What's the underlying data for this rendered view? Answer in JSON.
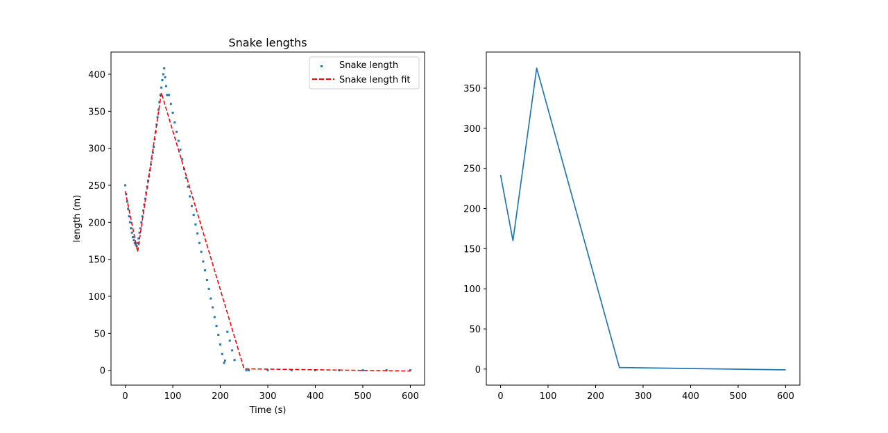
{
  "chart_data": [
    {
      "type": "scatter",
      "title": "Snake lengths",
      "xlabel": "Time (s)",
      "ylabel": "length (m)",
      "xlim": [
        -30,
        630
      ],
      "ylim": [
        -20,
        430
      ],
      "xticks": [
        0,
        100,
        200,
        300,
        400,
        500,
        600
      ],
      "yticks": [
        0,
        50,
        100,
        150,
        200,
        250,
        300,
        350,
        400
      ],
      "legend_position": "top-right",
      "series": [
        {
          "name": "Snake length",
          "kind": "scatter",
          "color": "#1f77b4",
          "points": [
            [
              0,
              250
            ],
            [
              2,
              238
            ],
            [
              4,
              228
            ],
            [
              6,
              218
            ],
            [
              8,
              208
            ],
            [
              10,
              200
            ],
            [
              12,
              192
            ],
            [
              14,
              186
            ],
            [
              16,
              180
            ],
            [
              18,
              176
            ],
            [
              20,
              172
            ],
            [
              22,
              170
            ],
            [
              24,
              168
            ],
            [
              26,
              172
            ],
            [
              28,
              178
            ],
            [
              30,
              186
            ],
            [
              32,
              192
            ],
            [
              34,
              200
            ],
            [
              36,
              208
            ],
            [
              38,
              216
            ],
            [
              40,
              224
            ],
            [
              42,
              232
            ],
            [
              44,
              240
            ],
            [
              46,
              248
            ],
            [
              48,
              256
            ],
            [
              50,
              262
            ],
            [
              52,
              270
            ],
            [
              54,
              278
            ],
            [
              56,
              286
            ],
            [
              58,
              294
            ],
            [
              60,
              302
            ],
            [
              62,
              312
            ],
            [
              64,
              322
            ],
            [
              66,
              332
            ],
            [
              68,
              342
            ],
            [
              70,
              352
            ],
            [
              72,
              362
            ],
            [
              74,
              372
            ],
            [
              76,
              382
            ],
            [
              78,
              392
            ],
            [
              80,
              400
            ],
            [
              82,
              408
            ],
            [
              84,
              396
            ],
            [
              86,
              384
            ],
            [
              88,
              372
            ],
            [
              92,
              372
            ],
            [
              96,
              360
            ],
            [
              100,
              348
            ],
            [
              104,
              335
            ],
            [
              108,
              322
            ],
            [
              112,
              310
            ],
            [
              116,
              298
            ],
            [
              120,
              285
            ],
            [
              124,
              272
            ],
            [
              128,
              260
            ],
            [
              132,
              248
            ],
            [
              136,
              235
            ],
            [
              140,
              222
            ],
            [
              144,
              210
            ],
            [
              148,
              197
            ],
            [
              152,
              185
            ],
            [
              156,
              172
            ],
            [
              160,
              160
            ],
            [
              164,
              147
            ],
            [
              168,
              135
            ],
            [
              172,
              122
            ],
            [
              176,
              110
            ],
            [
              180,
              97
            ],
            [
              184,
              85
            ],
            [
              188,
              72
            ],
            [
              192,
              60
            ],
            [
              196,
              48
            ],
            [
              200,
              35
            ],
            [
              204,
              22
            ],
            [
              208,
              10
            ],
            [
              210,
              13
            ],
            [
              215,
              52
            ],
            [
              220,
              40
            ],
            [
              225,
              27
            ],
            [
              230,
              14
            ],
            [
              255,
              0
            ],
            [
              260,
              0
            ],
            [
              300,
              0
            ],
            [
              350,
              0
            ],
            [
              400,
              0
            ],
            [
              450,
              0
            ],
            [
              500,
              0
            ],
            [
              550,
              0
            ],
            [
              600,
              0
            ]
          ]
        },
        {
          "name": "Snake length fit",
          "kind": "dashed-line",
          "color": "#ff0000",
          "x": [
            0,
            26,
            76,
            250,
            600
          ],
          "y": [
            242,
            160,
            375,
            2,
            -1
          ]
        }
      ]
    },
    {
      "type": "line",
      "title": "",
      "xlabel": "",
      "ylabel": "",
      "xlim": [
        -30,
        630
      ],
      "ylim": [
        -20,
        395
      ],
      "xticks": [
        0,
        100,
        200,
        300,
        400,
        500,
        600
      ],
      "yticks": [
        0,
        50,
        100,
        150,
        200,
        250,
        300,
        350
      ],
      "series": [
        {
          "kind": "line",
          "color": "#1f77b4",
          "x": [
            0,
            26,
            76,
            250,
            600
          ],
          "y": [
            242,
            160,
            375,
            2,
            -1
          ]
        }
      ]
    }
  ]
}
